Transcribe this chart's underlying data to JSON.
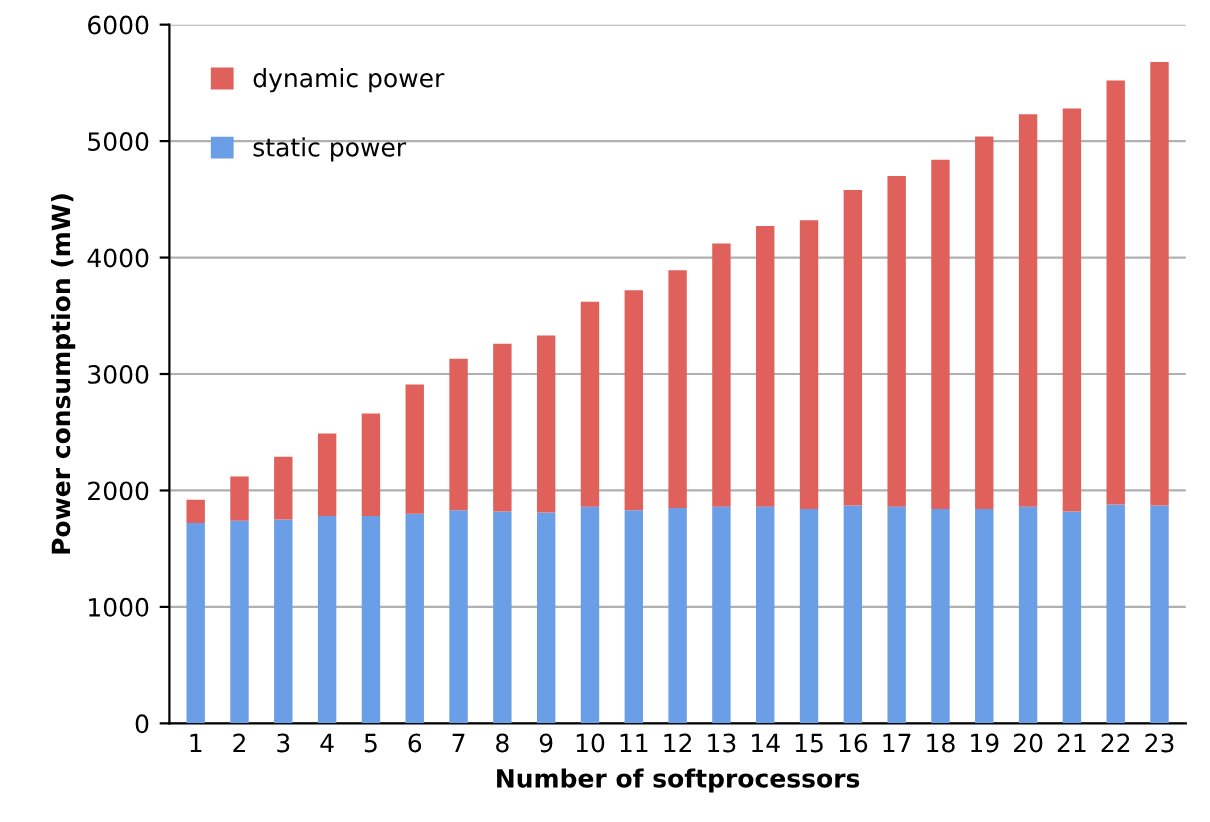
{
  "chart_data": {
    "type": "bar",
    "stacked": true,
    "xlabel": "Number of softprocessors",
    "ylabel": "Power consumption (mW)",
    "categories": [
      "1",
      "2",
      "3",
      "4",
      "5",
      "6",
      "7",
      "8",
      "9",
      "10",
      "11",
      "12",
      "13",
      "14",
      "15",
      "16",
      "17",
      "18",
      "19",
      "20",
      "21",
      "22",
      "23"
    ],
    "series": [
      {
        "name": "static power",
        "color": "#6a9ee6",
        "values": [
          1720,
          1740,
          1750,
          1780,
          1780,
          1800,
          1830,
          1820,
          1810,
          1860,
          1830,
          1850,
          1860,
          1860,
          1840,
          1870,
          1860,
          1840,
          1840,
          1860,
          1820,
          1880,
          1870
        ]
      },
      {
        "name": "dynamic power",
        "color": "#e0605c",
        "values": [
          200,
          380,
          540,
          710,
          880,
          1110,
          1300,
          1440,
          1520,
          1760,
          1890,
          2040,
          2260,
          2410,
          2480,
          2710,
          2840,
          3000,
          3200,
          3370,
          3460,
          3640,
          3810
        ]
      }
    ],
    "ylim": [
      0,
      6000
    ],
    "yticks": [
      0,
      1000,
      2000,
      3000,
      4000,
      5000,
      6000
    ],
    "grid": "y",
    "legend": "top left"
  }
}
